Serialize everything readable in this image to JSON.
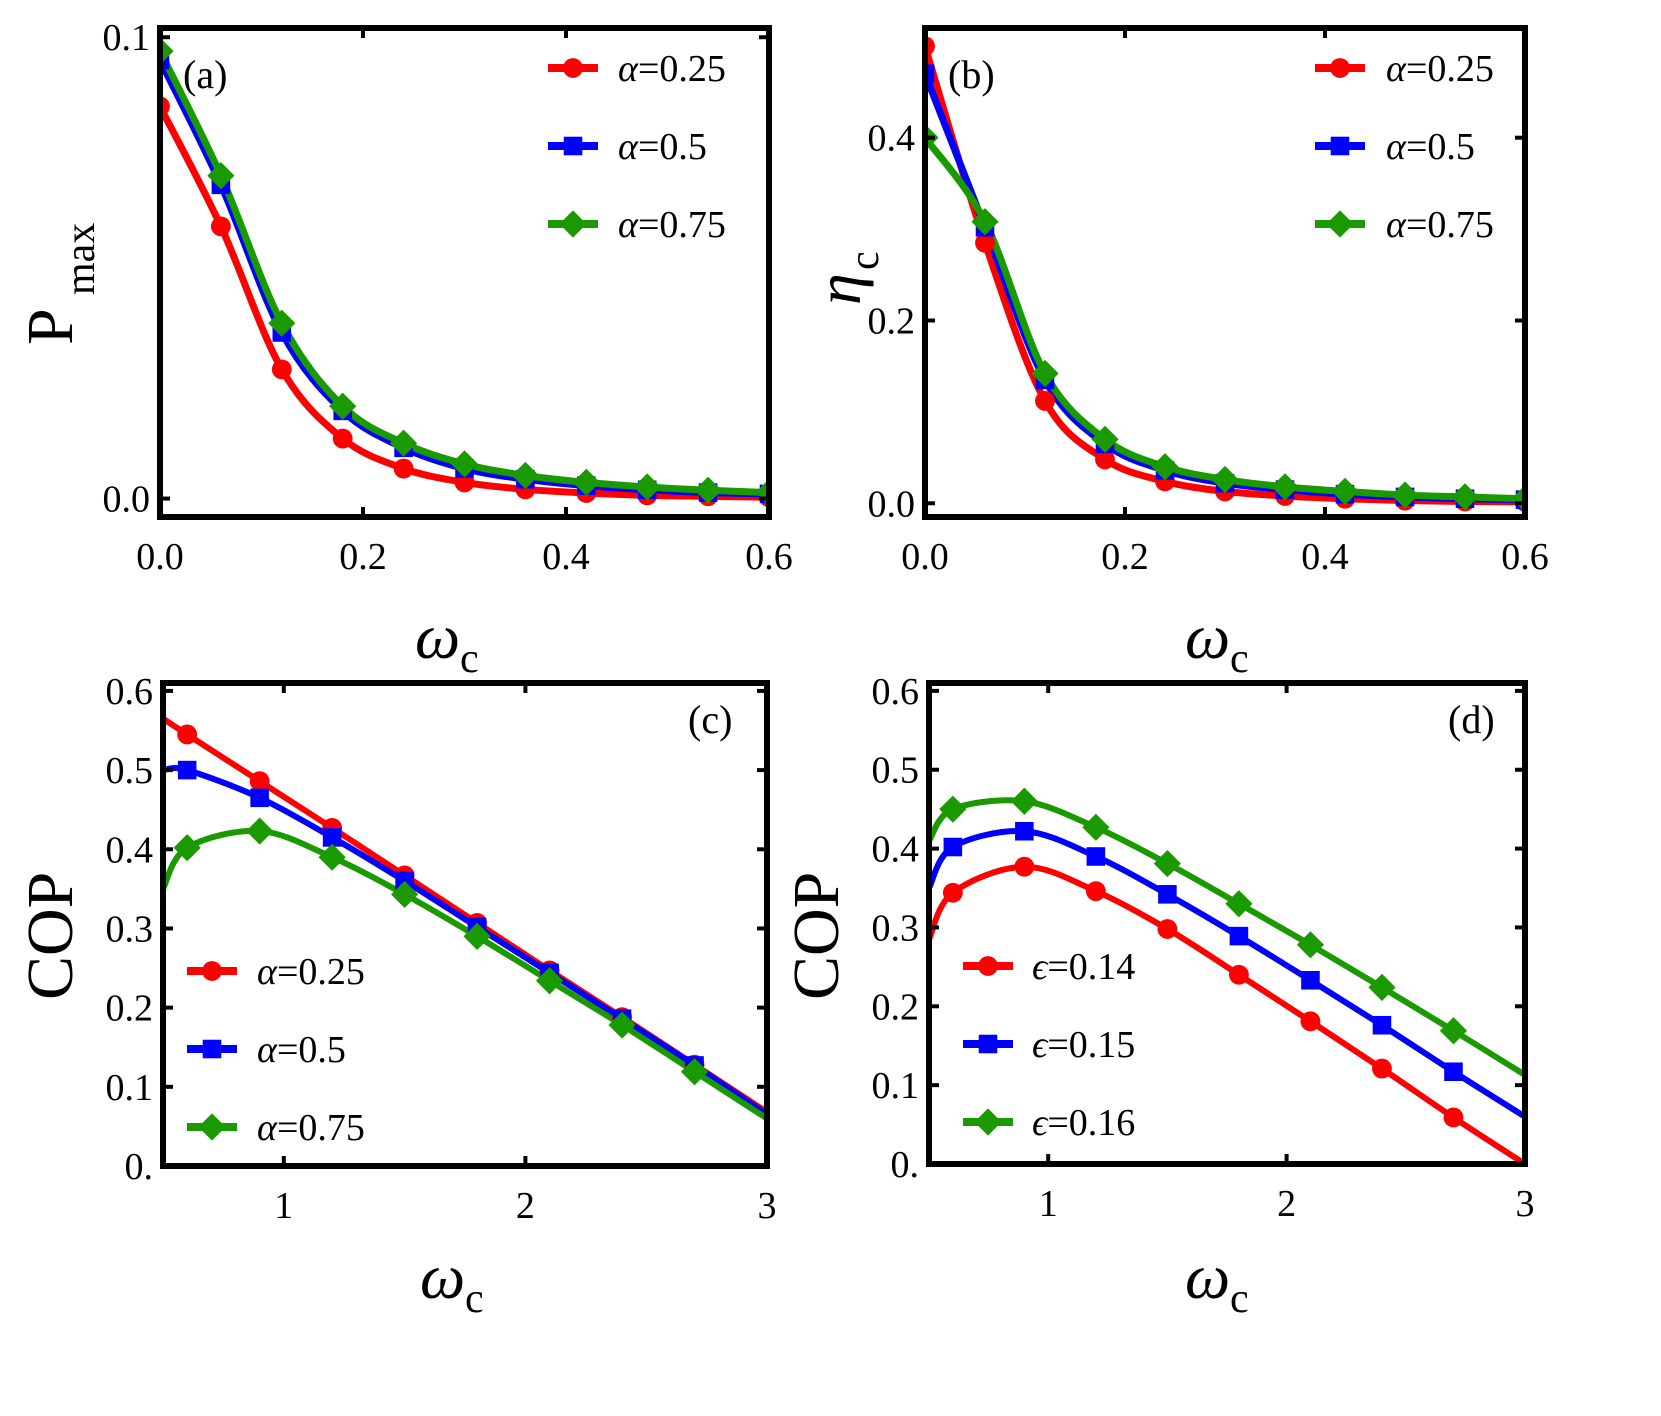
{
  "figure": {
    "colors": {
      "red": "#ff0000",
      "blue": "#0000ff",
      "green": "#1a9a00",
      "axis": "#000000"
    }
  },
  "chart_data": [
    {
      "panel": "(a)",
      "type": "line",
      "xlabel": "ω_c",
      "ylabel": "P_max",
      "xlim": [
        0,
        0.6
      ],
      "ylim": [
        -0.004,
        0.102
      ],
      "xticks": [
        "0.0",
        "0.2",
        "0.4",
        "0.6"
      ],
      "yticks": [
        "0.0",
        "0.1"
      ],
      "legend_position": "upper right",
      "x": [
        0.0,
        0.06,
        0.12,
        0.18,
        0.24,
        0.3,
        0.36,
        0.42,
        0.48,
        0.54,
        0.6
      ],
      "series": [
        {
          "name": "α=0.25",
          "marker": "circle",
          "color": "#ff0000",
          "values": [
            0.085,
            0.059,
            0.028,
            0.013,
            0.0065,
            0.0035,
            0.002,
            0.0012,
            0.0007,
            0.0005,
            0.0003
          ]
        },
        {
          "name": "α=0.5",
          "marker": "square",
          "color": "#0000ff",
          "values": [
            0.095,
            0.068,
            0.036,
            0.019,
            0.011,
            0.0065,
            0.0042,
            0.0028,
            0.0019,
            0.0013,
            0.001
          ]
        },
        {
          "name": "α=0.75",
          "marker": "diamond",
          "color": "#1a9a00",
          "values": [
            0.097,
            0.07,
            0.038,
            0.02,
            0.012,
            0.0075,
            0.005,
            0.0035,
            0.0025,
            0.0018,
            0.0013
          ]
        }
      ]
    },
    {
      "panel": "(b)",
      "type": "line",
      "xlabel": "ω_c",
      "ylabel": "η_c",
      "xlim": [
        0,
        0.6
      ],
      "ylim": [
        -0.015,
        0.52
      ],
      "xticks": [
        "0.0",
        "0.2",
        "0.4",
        "0.6"
      ],
      "yticks": [
        "0.0",
        "0.2",
        "0.4"
      ],
      "legend_position": "upper right",
      "x": [
        0.0,
        0.06,
        0.12,
        0.18,
        0.24,
        0.3,
        0.36,
        0.42,
        0.48,
        0.54,
        0.6
      ],
      "series": [
        {
          "name": "α=0.25",
          "marker": "circle",
          "color": "#ff0000",
          "values": [
            0.5,
            0.285,
            0.112,
            0.048,
            0.024,
            0.013,
            0.008,
            0.005,
            0.003,
            0.002,
            0.0015
          ]
        },
        {
          "name": "α=0.5",
          "marker": "square",
          "color": "#0000ff",
          "values": [
            0.47,
            0.302,
            0.135,
            0.065,
            0.036,
            0.022,
            0.015,
            0.01,
            0.007,
            0.005,
            0.004
          ]
        },
        {
          "name": "α=0.75",
          "marker": "diamond",
          "color": "#1a9a00",
          "values": [
            0.4,
            0.308,
            0.142,
            0.07,
            0.04,
            0.026,
            0.018,
            0.013,
            0.009,
            0.007,
            0.005
          ]
        }
      ]
    },
    {
      "panel": "(c)",
      "type": "line",
      "xlabel": "ω_c",
      "ylabel": "COP",
      "xlim": [
        0.5,
        3
      ],
      "ylim": [
        0,
        0.61
      ],
      "xticks": [
        "1",
        "2",
        "3"
      ],
      "yticks": [
        "0.",
        "0.1",
        "0.2",
        "0.3",
        "0.4",
        "0.5",
        "0.6"
      ],
      "legend_position": "lower left",
      "x": [
        0.6,
        0.9,
        1.2,
        1.5,
        1.8,
        2.1,
        2.4,
        2.7
      ],
      "series": [
        {
          "name": "α=0.25",
          "marker": "circle",
          "color": "#ff0000",
          "values": [
            0.545,
            0.486,
            0.427,
            0.367,
            0.307,
            0.247,
            0.188,
            0.128
          ]
        },
        {
          "name": "α=0.5",
          "marker": "square",
          "color": "#0000ff",
          "values": [
            0.5,
            0.465,
            0.415,
            0.36,
            0.302,
            0.244,
            0.186,
            0.127
          ]
        },
        {
          "name": "α=0.75",
          "marker": "diamond",
          "color": "#1a9a00",
          "values": [
            0.402,
            0.423,
            0.39,
            0.343,
            0.29,
            0.234,
            0.178,
            0.119
          ]
        }
      ],
      "curve_endpoints": {
        "x0": 0.5,
        "values_at_x0": [
          0.565,
          0.5,
          0.35
        ],
        "x1": 3.0,
        "values_at_x1": [
          0.068,
          0.065,
          0.06
        ]
      }
    },
    {
      "panel": "(d)",
      "type": "line",
      "xlabel": "ω_c",
      "ylabel": "COP",
      "xlim": [
        0.5,
        3
      ],
      "ylim": [
        0,
        0.61
      ],
      "xticks": [
        "1",
        "2",
        "3"
      ],
      "yticks": [
        "0.",
        "0.1",
        "0.2",
        "0.3",
        "0.4",
        "0.5",
        "0.6"
      ],
      "legend_position": "lower left",
      "x": [
        0.6,
        0.9,
        1.2,
        1.5,
        1.8,
        2.1,
        2.4,
        2.7
      ],
      "series": [
        {
          "name": "ϵ=0.14",
          "marker": "circle",
          "color": "#ff0000",
          "values": [
            0.344,
            0.377,
            0.346,
            0.298,
            0.24,
            0.181,
            0.121,
            0.059
          ]
        },
        {
          "name": "ϵ=0.15",
          "marker": "square",
          "color": "#0000ff",
          "values": [
            0.402,
            0.422,
            0.39,
            0.342,
            0.289,
            0.233,
            0.176,
            0.117
          ]
        },
        {
          "name": "ϵ=0.16",
          "marker": "diamond",
          "color": "#1a9a00",
          "values": [
            0.45,
            0.46,
            0.427,
            0.381,
            0.33,
            0.278,
            0.224,
            0.169
          ]
        }
      ],
      "curve_endpoints": {
        "x0": 0.5,
        "values_at_x0": [
          0.285,
          0.35,
          0.41
        ],
        "x1": 3.0,
        "values_at_x1": [
          0.0,
          0.06,
          0.113
        ]
      }
    }
  ],
  "panels": [
    {
      "label": "(a)",
      "ylabel_main": "P",
      "ylabel_sub": "max",
      "xlabel_main": "ω",
      "xlabel_sub": "c",
      "legend": [
        "α=0.25",
        "α=0.5",
        "α=0.75"
      ]
    },
    {
      "label": "(b)",
      "ylabel_main": "η",
      "ylabel_sub": "c",
      "xlabel_main": "ω",
      "xlabel_sub": "c",
      "legend": [
        "α=0.25",
        "α=0.5",
        "α=0.75"
      ]
    },
    {
      "label": "(c)",
      "ylabel_main": "COP",
      "ylabel_sub": "",
      "xlabel_main": "ω",
      "xlabel_sub": "c",
      "legend": [
        "α=0.25",
        "α=0.5",
        "α=0.75"
      ]
    },
    {
      "label": "(d)",
      "ylabel_main": "COP",
      "ylabel_sub": "",
      "xlabel_main": "ω",
      "xlabel_sub": "c",
      "legend": [
        "ϵ=0.14",
        "ϵ=0.15",
        "ϵ=0.16"
      ]
    }
  ]
}
